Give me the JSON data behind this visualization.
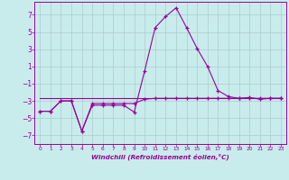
{
  "title": "",
  "xlabel": "Windchill (Refroidissement éolien,°C)",
  "ylabel": "",
  "bg_color": "#c8ecec",
  "line_color": "#990099",
  "grid_color": "#aacccc",
  "xlim": [
    -0.5,
    23.5
  ],
  "ylim": [
    -8,
    8.5
  ],
  "yticks": [
    -7,
    -5,
    -3,
    -1,
    1,
    3,
    5,
    7
  ],
  "xticks": [
    0,
    1,
    2,
    3,
    4,
    5,
    6,
    7,
    8,
    9,
    10,
    11,
    12,
    13,
    14,
    15,
    16,
    17,
    18,
    19,
    20,
    21,
    22,
    23
  ],
  "line1_x": [
    0,
    1,
    2,
    3,
    4,
    5,
    6,
    7,
    8,
    9,
    10,
    11,
    12,
    13,
    14,
    15,
    16,
    17,
    18,
    19,
    20,
    21,
    22,
    23
  ],
  "line1_y": [
    -4.2,
    -4.2,
    -3.0,
    -3.0,
    -6.5,
    -3.5,
    -3.5,
    -3.5,
    -3.5,
    -4.3,
    0.5,
    5.5,
    6.8,
    7.8,
    5.5,
    3.1,
    1.0,
    -1.8,
    -2.5,
    -2.7,
    -2.6,
    -2.8,
    -2.7,
    -2.7
  ],
  "line2_x": [
    0,
    1,
    2,
    3,
    4,
    5,
    6,
    7,
    8,
    9,
    10,
    11,
    12,
    13,
    14,
    15,
    16,
    17,
    18,
    19,
    20,
    21,
    22,
    23
  ],
  "line2_y": [
    -2.7,
    -2.7,
    -2.7,
    -2.7,
    -2.7,
    -2.7,
    -2.7,
    -2.7,
    -2.7,
    -2.7,
    -2.7,
    -2.7,
    -2.7,
    -2.7,
    -2.7,
    -2.7,
    -2.7,
    -2.7,
    -2.7,
    -2.7,
    -2.7,
    -2.7,
    -2.7,
    -2.7
  ],
  "line3_x": [
    0,
    1,
    2,
    3,
    4,
    5,
    6,
    7,
    8,
    9,
    10,
    11,
    12,
    13,
    14,
    15,
    16,
    17,
    18,
    19,
    20,
    21,
    22,
    23
  ],
  "line3_y": [
    -4.2,
    -4.2,
    -3.0,
    -3.0,
    -6.5,
    -3.3,
    -3.3,
    -3.3,
    -3.3,
    -3.3,
    -2.8,
    -2.7,
    -2.7,
    -2.7,
    -2.7,
    -2.7,
    -2.7,
    -2.7,
    -2.7,
    -2.7,
    -2.7,
    -2.7,
    -2.7,
    -2.7
  ]
}
